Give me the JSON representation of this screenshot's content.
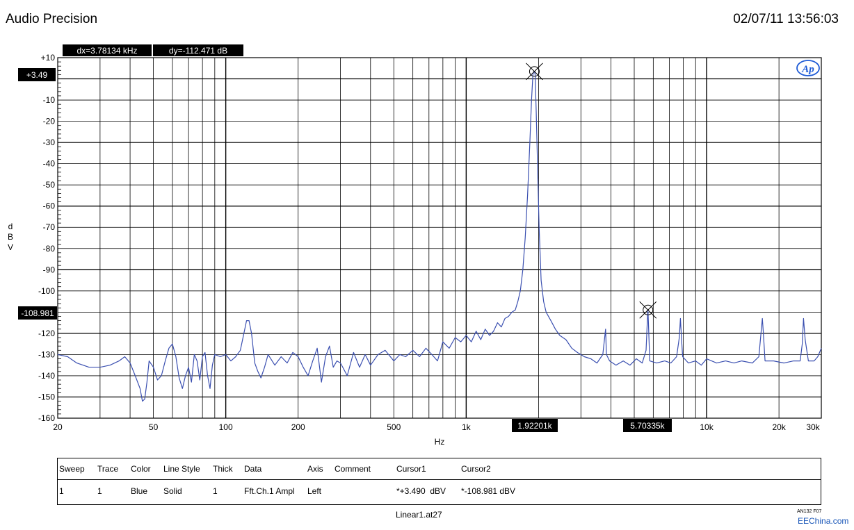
{
  "header": {
    "app_title": "Audio Precision",
    "timestamp": "02/07/11 13:56:03"
  },
  "cursor_readouts": {
    "dx": "dx=3.78134 kHz",
    "dy": "dy=-112.471 dB",
    "cursor1_y_label": "+3.49",
    "cursor2_y_label": "-108.981",
    "cursor1_x_label": "1.92201k",
    "cursor2_x_label": "5.70335k"
  },
  "logo": {
    "text": "Ap",
    "icon": "ap-logo-icon"
  },
  "chart_data": {
    "type": "line",
    "xlabel": "Hz",
    "ylabel": "dBV",
    "xscale": "log",
    "xlim": [
      20,
      30000
    ],
    "ylim": [
      -160,
      10
    ],
    "grid": true,
    "x_ticks": [
      {
        "v": 20,
        "label": "20"
      },
      {
        "v": 50,
        "label": "50"
      },
      {
        "v": 100,
        "label": "100"
      },
      {
        "v": 200,
        "label": "200"
      },
      {
        "v": 500,
        "label": "500"
      },
      {
        "v": 1000,
        "label": "1k"
      },
      {
        "v": 2000,
        "label": "2k"
      },
      {
        "v": 5000,
        "label": "5k"
      },
      {
        "v": 10000,
        "label": "10k"
      },
      {
        "v": 20000,
        "label": "20k"
      },
      {
        "v": 30000,
        "label": "30k"
      }
    ],
    "y_ticks": [
      {
        "v": 10,
        "label": "+10"
      },
      {
        "v": -10,
        "label": "-10"
      },
      {
        "v": -20,
        "label": "-20"
      },
      {
        "v": -30,
        "label": "-30"
      },
      {
        "v": -40,
        "label": "-40"
      },
      {
        "v": -50,
        "label": "-50"
      },
      {
        "v": -60,
        "label": "-60"
      },
      {
        "v": -70,
        "label": "-70"
      },
      {
        "v": -80,
        "label": "-80"
      },
      {
        "v": -90,
        "label": "-90"
      },
      {
        "v": -100,
        "label": "-100"
      },
      {
        "v": -120,
        "label": "-120"
      },
      {
        "v": -130,
        "label": "-130"
      },
      {
        "v": -140,
        "label": "-140"
      },
      {
        "v": -150,
        "label": "-150"
      },
      {
        "v": -160,
        "label": "-160"
      }
    ],
    "series": [
      {
        "color": "#3a4fb0",
        "points": [
          [
            20,
            -130
          ],
          [
            22,
            -131
          ],
          [
            24,
            -134
          ],
          [
            27,
            -136
          ],
          [
            30,
            -136
          ],
          [
            33,
            -135
          ],
          [
            36,
            -133
          ],
          [
            38,
            -131
          ],
          [
            40,
            -134
          ],
          [
            42,
            -140
          ],
          [
            44,
            -146
          ],
          [
            45,
            -152
          ],
          [
            46,
            -151
          ],
          [
            47,
            -143
          ],
          [
            48,
            -133
          ],
          [
            50,
            -136
          ],
          [
            52,
            -142
          ],
          [
            54,
            -140
          ],
          [
            56,
            -133
          ],
          [
            58,
            -127
          ],
          [
            60,
            -125
          ],
          [
            62,
            -131
          ],
          [
            64,
            -141
          ],
          [
            66,
            -146
          ],
          [
            68,
            -140
          ],
          [
            70,
            -136
          ],
          [
            72,
            -143
          ],
          [
            74,
            -130
          ],
          [
            76,
            -133
          ],
          [
            78,
            -142
          ],
          [
            80,
            -131
          ],
          [
            82,
            -129
          ],
          [
            84,
            -140
          ],
          [
            86,
            -146
          ],
          [
            88,
            -135
          ],
          [
            90,
            -130
          ],
          [
            95,
            -131
          ],
          [
            100,
            -130
          ],
          [
            105,
            -133
          ],
          [
            110,
            -131
          ],
          [
            115,
            -128
          ],
          [
            120,
            -118
          ],
          [
            122,
            -114
          ],
          [
            125,
            -114
          ],
          [
            128,
            -120
          ],
          [
            132,
            -134
          ],
          [
            136,
            -138
          ],
          [
            140,
            -141
          ],
          [
            145,
            -136
          ],
          [
            150,
            -130
          ],
          [
            160,
            -135
          ],
          [
            170,
            -131
          ],
          [
            180,
            -134
          ],
          [
            190,
            -129
          ],
          [
            200,
            -131
          ],
          [
            210,
            -136
          ],
          [
            220,
            -140
          ],
          [
            230,
            -133
          ],
          [
            240,
            -127
          ],
          [
            250,
            -143
          ],
          [
            260,
            -131
          ],
          [
            270,
            -126
          ],
          [
            280,
            -136
          ],
          [
            290,
            -133
          ],
          [
            300,
            -134
          ],
          [
            320,
            -140
          ],
          [
            340,
            -129
          ],
          [
            360,
            -136
          ],
          [
            380,
            -130
          ],
          [
            400,
            -135
          ],
          [
            430,
            -130
          ],
          [
            460,
            -128
          ],
          [
            500,
            -133
          ],
          [
            530,
            -130
          ],
          [
            560,
            -131
          ],
          [
            600,
            -128
          ],
          [
            640,
            -131
          ],
          [
            680,
            -127
          ],
          [
            720,
            -130
          ],
          [
            760,
            -133
          ],
          [
            800,
            -124
          ],
          [
            850,
            -127
          ],
          [
            900,
            -122
          ],
          [
            950,
            -124
          ],
          [
            1000,
            -121
          ],
          [
            1050,
            -124
          ],
          [
            1100,
            -119
          ],
          [
            1150,
            -123
          ],
          [
            1200,
            -118
          ],
          [
            1250,
            -121
          ],
          [
            1300,
            -119
          ],
          [
            1350,
            -115
          ],
          [
            1400,
            -117
          ],
          [
            1450,
            -113
          ],
          [
            1500,
            -112
          ],
          [
            1550,
            -110
          ],
          [
            1600,
            -109
          ],
          [
            1640,
            -105
          ],
          [
            1680,
            -100
          ],
          [
            1720,
            -90
          ],
          [
            1760,
            -75
          ],
          [
            1800,
            -55
          ],
          [
            1840,
            -30
          ],
          [
            1870,
            -10
          ],
          [
            1895,
            2
          ],
          [
            1910,
            3.49
          ],
          [
            1922,
            3.49
          ],
          [
            1935,
            2
          ],
          [
            1955,
            -15
          ],
          [
            1980,
            -40
          ],
          [
            2010,
            -70
          ],
          [
            2050,
            -95
          ],
          [
            2100,
            -105
          ],
          [
            2150,
            -110
          ],
          [
            2250,
            -114
          ],
          [
            2350,
            -118
          ],
          [
            2450,
            -121
          ],
          [
            2600,
            -123
          ],
          [
            2750,
            -127
          ],
          [
            2900,
            -129
          ],
          [
            3100,
            -131
          ],
          [
            3300,
            -132
          ],
          [
            3500,
            -134
          ],
          [
            3700,
            -130
          ],
          [
            3800,
            -118
          ],
          [
            3830,
            -130
          ],
          [
            3950,
            -133
          ],
          [
            4200,
            -135
          ],
          [
            4500,
            -133
          ],
          [
            4800,
            -135
          ],
          [
            5100,
            -132
          ],
          [
            5400,
            -134
          ],
          [
            5600,
            -128
          ],
          [
            5680,
            -112
          ],
          [
            5703,
            -108.981
          ],
          [
            5730,
            -115
          ],
          [
            5800,
            -133
          ],
          [
            6200,
            -134
          ],
          [
            6700,
            -133
          ],
          [
            7100,
            -134
          ],
          [
            7500,
            -131
          ],
          [
            7700,
            -122
          ],
          [
            7780,
            -113
          ],
          [
            7860,
            -122
          ],
          [
            7950,
            -131
          ],
          [
            8400,
            -134
          ],
          [
            9000,
            -133
          ],
          [
            9500,
            -135
          ],
          [
            10000,
            -132
          ],
          [
            11000,
            -134
          ],
          [
            12000,
            -133
          ],
          [
            13000,
            -134
          ],
          [
            14000,
            -133
          ],
          [
            15500,
            -134
          ],
          [
            16500,
            -131
          ],
          [
            16900,
            -118
          ],
          [
            17050,
            -113
          ],
          [
            17200,
            -119
          ],
          [
            17500,
            -133
          ],
          [
            19000,
            -133
          ],
          [
            21000,
            -134
          ],
          [
            23000,
            -133
          ],
          [
            24500,
            -133
          ],
          [
            25000,
            -125
          ],
          [
            25300,
            -113
          ],
          [
            25700,
            -123
          ],
          [
            26500,
            -133
          ],
          [
            28000,
            -133
          ],
          [
            29000,
            -131
          ],
          [
            30000,
            -127
          ]
        ]
      }
    ],
    "cursors": [
      {
        "x": 1922.01,
        "y": 3.49
      },
      {
        "x": 5703.35,
        "y": -108.981
      }
    ]
  },
  "legend_table": {
    "headers": [
      "Sweep",
      "Trace",
      "Color",
      "Line Style",
      "Thick",
      "Data",
      "Axis",
      "Comment",
      "Cursor1",
      "Cursor2"
    ],
    "row": [
      "1",
      "1",
      "Blue",
      "Solid",
      "1",
      "Fft.Ch.1 Ampl",
      "Left",
      "",
      "*+3.490  dBV",
      "*-108.981 dBV"
    ]
  },
  "footer": {
    "file": "Linear1.at27",
    "doc_code": "AN132 F07",
    "watermark": "EEChina.com"
  }
}
